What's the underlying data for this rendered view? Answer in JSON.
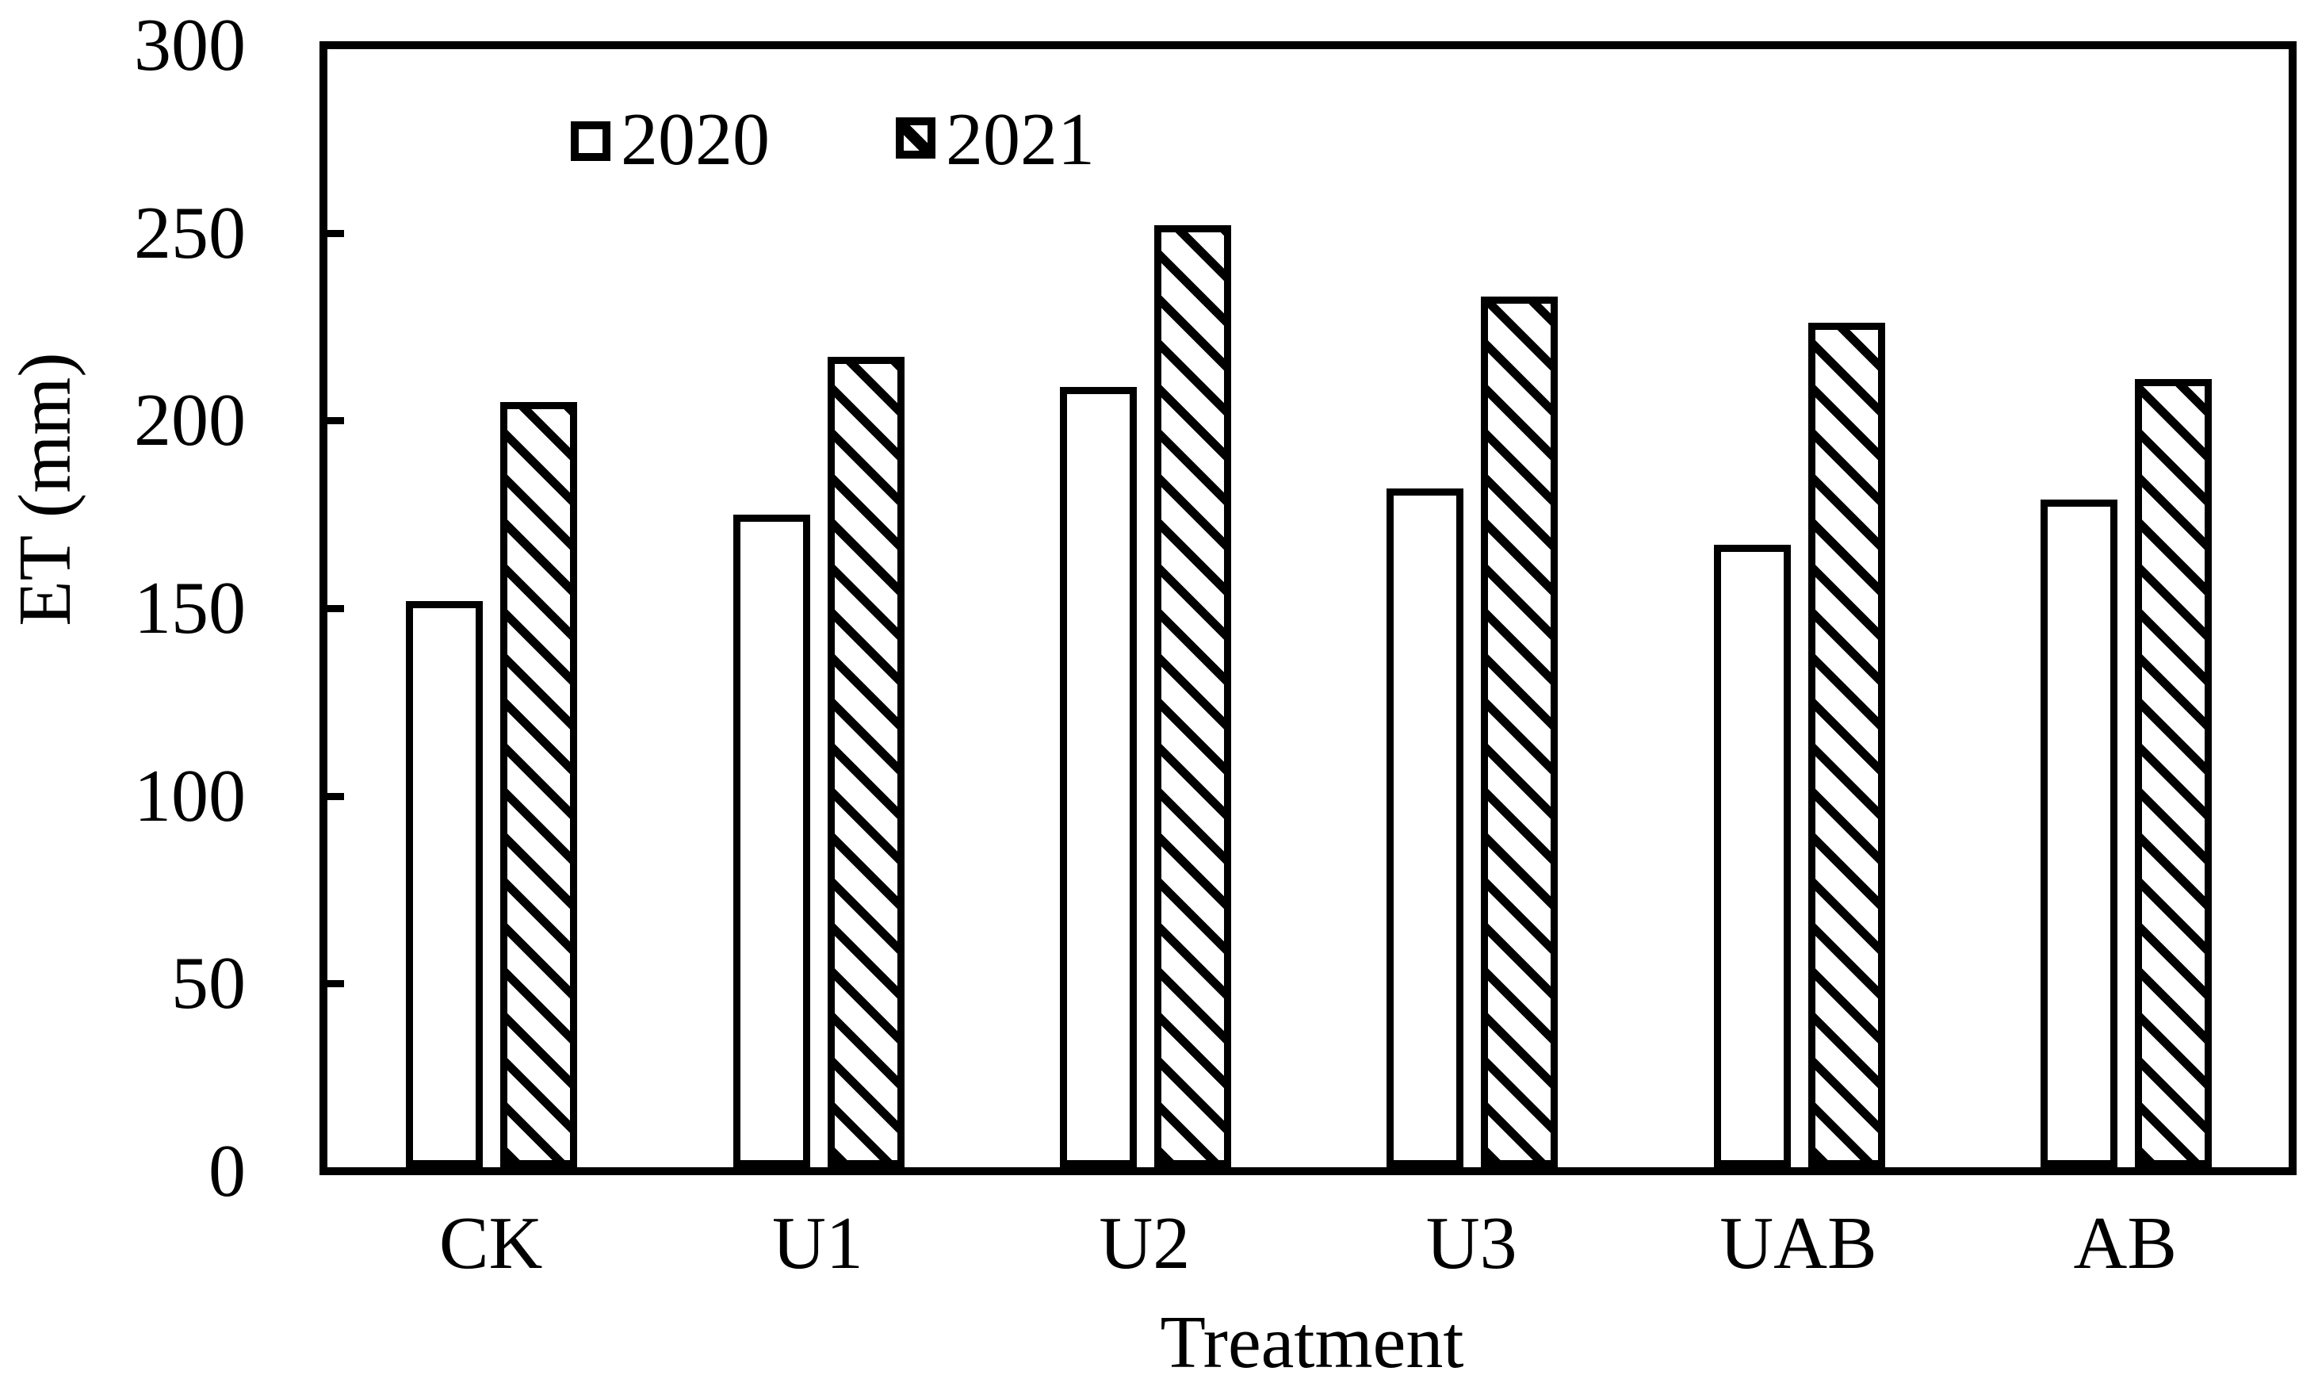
{
  "chart_data": {
    "type": "bar",
    "categories": [
      "CK",
      "U1",
      "U2",
      "U3",
      "UAB",
      "AB"
    ],
    "series": [
      {
        "name": "2020",
        "style": "open-white",
        "values": [
          152,
          175,
          209,
          182,
          167,
          179
        ]
      },
      {
        "name": "2021",
        "style": "diagonal-hatch",
        "values": [
          205,
          217,
          252,
          233,
          226,
          211
        ]
      }
    ],
    "title": "",
    "xlabel": "Treatment",
    "ylabel": "ET (mm)",
    "ylim": [
      0,
      300
    ],
    "yticks": [
      0,
      50,
      100,
      150,
      200,
      250,
      300
    ],
    "grid": false,
    "legend_position": "inside-top-left",
    "colors": {
      "foreground": "#000000",
      "background": "#ffffff"
    }
  },
  "axes": {
    "xlabel": "Treatment",
    "ylabel": "ET (mm)",
    "ytick_labels": [
      "0",
      "50",
      "100",
      "150",
      "200",
      "250",
      "300"
    ],
    "xtick_labels": [
      "CK",
      "U1",
      "U2",
      "U3",
      "UAB",
      "AB"
    ]
  },
  "legend": {
    "items": [
      {
        "label": "2020",
        "swatch": "open-square"
      },
      {
        "label": "2021",
        "swatch": "hatched-square"
      }
    ]
  }
}
